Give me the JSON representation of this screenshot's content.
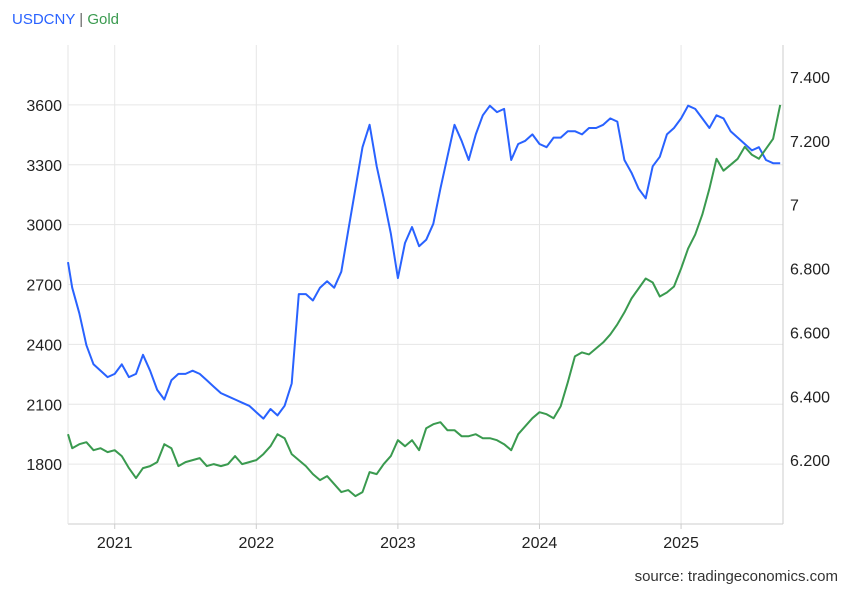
{
  "chart_data": {
    "type": "line",
    "title_parts": [
      "USDCNY",
      " | ",
      "Gold"
    ],
    "x_ticks": [
      "2021",
      "2022",
      "2023",
      "2024",
      "2025"
    ],
    "left_axis": {
      "series": "Gold",
      "ylim": [
        1500,
        3900
      ],
      "ticks": [
        "1800",
        "2100",
        "2400",
        "2700",
        "3000",
        "3300",
        "3600"
      ]
    },
    "right_axis": {
      "series": "USDCNY",
      "ylim": [
        6.0,
        7.5
      ],
      "ticks": [
        "6.200",
        "6.400",
        "6.600",
        "6.800",
        "7",
        "7.200",
        "7.400"
      ]
    },
    "grid": true,
    "series": [
      {
        "name": "USDCNY",
        "color": "#2962ff",
        "axis": "right",
        "x": [
          2020.67,
          2020.7,
          2020.75,
          2020.8,
          2020.85,
          2020.9,
          2020.95,
          2021.0,
          2021.05,
          2021.1,
          2021.15,
          2021.2,
          2021.25,
          2021.3,
          2021.35,
          2021.4,
          2021.45,
          2021.5,
          2021.55,
          2021.6,
          2021.65,
          2021.7,
          2021.75,
          2021.8,
          2021.85,
          2021.9,
          2021.95,
          2022.0,
          2022.05,
          2022.1,
          2022.15,
          2022.2,
          2022.25,
          2022.3,
          2022.35,
          2022.4,
          2022.45,
          2022.5,
          2022.55,
          2022.6,
          2022.65,
          2022.7,
          2022.75,
          2022.8,
          2022.85,
          2022.9,
          2022.95,
          2023.0,
          2023.05,
          2023.1,
          2023.15,
          2023.2,
          2023.25,
          2023.3,
          2023.35,
          2023.4,
          2023.45,
          2023.5,
          2023.55,
          2023.6,
          2023.65,
          2023.7,
          2023.75,
          2023.8,
          2023.85,
          2023.9,
          2023.95,
          2024.0,
          2024.05,
          2024.1,
          2024.15,
          2024.2,
          2024.25,
          2024.3,
          2024.35,
          2024.4,
          2024.45,
          2024.5,
          2024.55,
          2024.6,
          2024.65,
          2024.7,
          2024.75,
          2024.8,
          2024.85,
          2024.9,
          2024.95,
          2025.0,
          2025.05,
          2025.1,
          2025.15,
          2025.2,
          2025.25,
          2025.3,
          2025.35,
          2025.4,
          2025.45,
          2025.5,
          2025.55,
          2025.6,
          2025.65,
          2025.7
        ],
        "values": [
          6.82,
          6.74,
          6.66,
          6.56,
          6.5,
          6.48,
          6.46,
          6.47,
          6.5,
          6.46,
          6.47,
          6.53,
          6.48,
          6.42,
          6.39,
          6.45,
          6.47,
          6.47,
          6.48,
          6.47,
          6.45,
          6.43,
          6.41,
          6.4,
          6.39,
          6.38,
          6.37,
          6.35,
          6.33,
          6.36,
          6.34,
          6.37,
          6.44,
          6.72,
          6.72,
          6.7,
          6.74,
          6.76,
          6.74,
          6.79,
          6.92,
          7.05,
          7.18,
          7.25,
          7.12,
          7.02,
          6.91,
          6.77,
          6.88,
          6.93,
          6.87,
          6.89,
          6.94,
          7.05,
          7.15,
          7.25,
          7.2,
          7.14,
          7.22,
          7.28,
          7.31,
          7.29,
          7.3,
          7.14,
          7.19,
          7.2,
          7.22,
          7.19,
          7.18,
          7.21,
          7.21,
          7.23,
          7.23,
          7.22,
          7.24,
          7.24,
          7.25,
          7.27,
          7.26,
          7.14,
          7.1,
          7.05,
          7.02,
          7.12,
          7.15,
          7.22,
          7.24,
          7.27,
          7.31,
          7.3,
          7.27,
          7.24,
          7.28,
          7.27,
          7.23,
          7.21,
          7.19,
          7.17,
          7.18,
          7.14,
          7.13,
          7.13
        ]
      },
      {
        "name": "Gold",
        "color": "#3a9a4f",
        "axis": "left",
        "x": [
          2020.67,
          2020.7,
          2020.75,
          2020.8,
          2020.85,
          2020.9,
          2020.95,
          2021.0,
          2021.05,
          2021.1,
          2021.15,
          2021.2,
          2021.25,
          2021.3,
          2021.35,
          2021.4,
          2021.45,
          2021.5,
          2021.55,
          2021.6,
          2021.65,
          2021.7,
          2021.75,
          2021.8,
          2021.85,
          2021.9,
          2021.95,
          2022.0,
          2022.05,
          2022.1,
          2022.15,
          2022.2,
          2022.25,
          2022.3,
          2022.35,
          2022.4,
          2022.45,
          2022.5,
          2022.55,
          2022.6,
          2022.65,
          2022.7,
          2022.75,
          2022.8,
          2022.85,
          2022.9,
          2022.95,
          2023.0,
          2023.05,
          2023.1,
          2023.15,
          2023.2,
          2023.25,
          2023.3,
          2023.35,
          2023.4,
          2023.45,
          2023.5,
          2023.55,
          2023.6,
          2023.65,
          2023.7,
          2023.75,
          2023.8,
          2023.85,
          2023.9,
          2023.95,
          2024.0,
          2024.05,
          2024.1,
          2024.15,
          2024.2,
          2024.25,
          2024.3,
          2024.35,
          2024.4,
          2024.45,
          2024.5,
          2024.55,
          2024.6,
          2024.65,
          2024.7,
          2024.75,
          2024.8,
          2024.85,
          2024.9,
          2024.95,
          2025.0,
          2025.05,
          2025.1,
          2025.15,
          2025.2,
          2025.25,
          2025.3,
          2025.35,
          2025.4,
          2025.45,
          2025.5,
          2025.55,
          2025.6,
          2025.65,
          2025.7
        ],
        "values": [
          1950,
          1880,
          1900,
          1910,
          1870,
          1880,
          1860,
          1870,
          1840,
          1780,
          1730,
          1780,
          1790,
          1810,
          1900,
          1880,
          1790,
          1810,
          1820,
          1830,
          1790,
          1800,
          1790,
          1800,
          1840,
          1800,
          1810,
          1820,
          1850,
          1890,
          1950,
          1930,
          1850,
          1820,
          1790,
          1750,
          1720,
          1740,
          1700,
          1660,
          1670,
          1640,
          1660,
          1760,
          1750,
          1800,
          1840,
          1920,
          1890,
          1920,
          1870,
          1980,
          2000,
          2010,
          1970,
          1970,
          1940,
          1940,
          1950,
          1930,
          1930,
          1920,
          1900,
          1870,
          1950,
          1990,
          2030,
          2060,
          2050,
          2030,
          2090,
          2210,
          2340,
          2360,
          2350,
          2380,
          2410,
          2450,
          2500,
          2560,
          2630,
          2680,
          2730,
          2710,
          2640,
          2660,
          2690,
          2780,
          2880,
          2950,
          3050,
          3180,
          3330,
          3270,
          3300,
          3330,
          3390,
          3350,
          3330,
          3380,
          3430,
          3600
        ]
      }
    ]
  },
  "source": "source: tradingeconomics.com"
}
